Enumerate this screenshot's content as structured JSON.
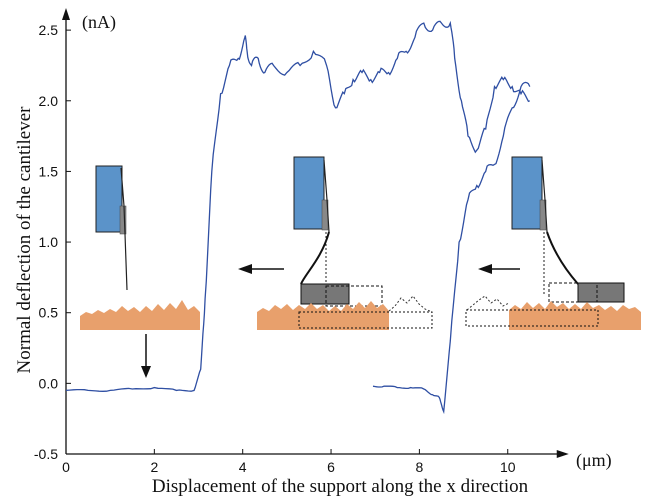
{
  "chart_data": {
    "type": "line",
    "title": "",
    "xlabel": "Displacement of the support along the x direction",
    "ylabel": "Normal deflection of the cantilever",
    "x_unit": "(μm)",
    "y_unit": "(nA)",
    "xlim": [
      0,
      11.5
    ],
    "ylim": [
      -0.5,
      2.6
    ],
    "x_ticks": [
      0,
      2,
      4,
      6,
      8,
      10
    ],
    "x_tick_labels": [
      "0",
      "2",
      "4",
      "6",
      "8",
      "10"
    ],
    "y_ticks": [
      -0.5,
      0.0,
      0.5,
      1.0,
      1.5,
      2.0,
      2.5
    ],
    "y_tick_labels": [
      "-0.5",
      "0.0",
      "0.5",
      "1.0",
      "1.5",
      "2.0",
      "2.5"
    ],
    "grid": false,
    "line_color": "#2f4fa3",
    "series": [
      {
        "x": [
          0.0,
          0.5,
          1.0,
          1.5,
          2.0,
          2.5,
          2.9,
          3.05,
          3.15,
          3.3,
          3.5,
          3.7,
          3.9,
          4.05,
          4.1,
          4.2,
          4.35,
          4.5,
          4.7,
          5.0,
          5.3,
          5.6,
          5.9,
          6.1,
          6.3,
          6.5,
          6.7,
          6.9,
          7.1,
          7.3,
          7.5,
          7.7,
          7.9,
          8.1,
          8.3,
          8.5,
          8.7,
          8.8,
          8.95,
          9.1,
          9.3,
          9.5,
          9.7,
          9.9,
          10.1,
          10.3,
          10.5
        ],
        "y": [
          -0.05,
          -0.05,
          -0.05,
          -0.04,
          -0.03,
          -0.05,
          -0.05,
          0.1,
          0.6,
          1.5,
          2.05,
          2.25,
          2.3,
          2.45,
          2.35,
          2.25,
          2.3,
          2.2,
          2.25,
          2.2,
          2.25,
          2.35,
          2.25,
          1.95,
          2.05,
          2.15,
          2.2,
          2.15,
          2.2,
          2.2,
          2.3,
          2.35,
          2.45,
          2.55,
          2.5,
          2.55,
          2.55,
          2.3,
          2.0,
          1.75,
          1.65,
          1.8,
          2.1,
          2.15,
          2.1,
          2.05,
          2.0
        ]
      },
      {
        "x": [
          6.95,
          7.2,
          7.5,
          7.8,
          8.1,
          8.3,
          8.45,
          8.55,
          8.7,
          8.9,
          9.1,
          9.3,
          9.5,
          9.7,
          9.9,
          10.1,
          10.3,
          10.5
        ],
        "y": [
          -0.02,
          -0.02,
          -0.03,
          -0.03,
          -0.04,
          -0.08,
          -0.1,
          -0.2,
          0.3,
          1.0,
          1.3,
          1.4,
          1.5,
          1.55,
          1.75,
          1.95,
          2.1,
          2.1
        ]
      }
    ]
  }
}
